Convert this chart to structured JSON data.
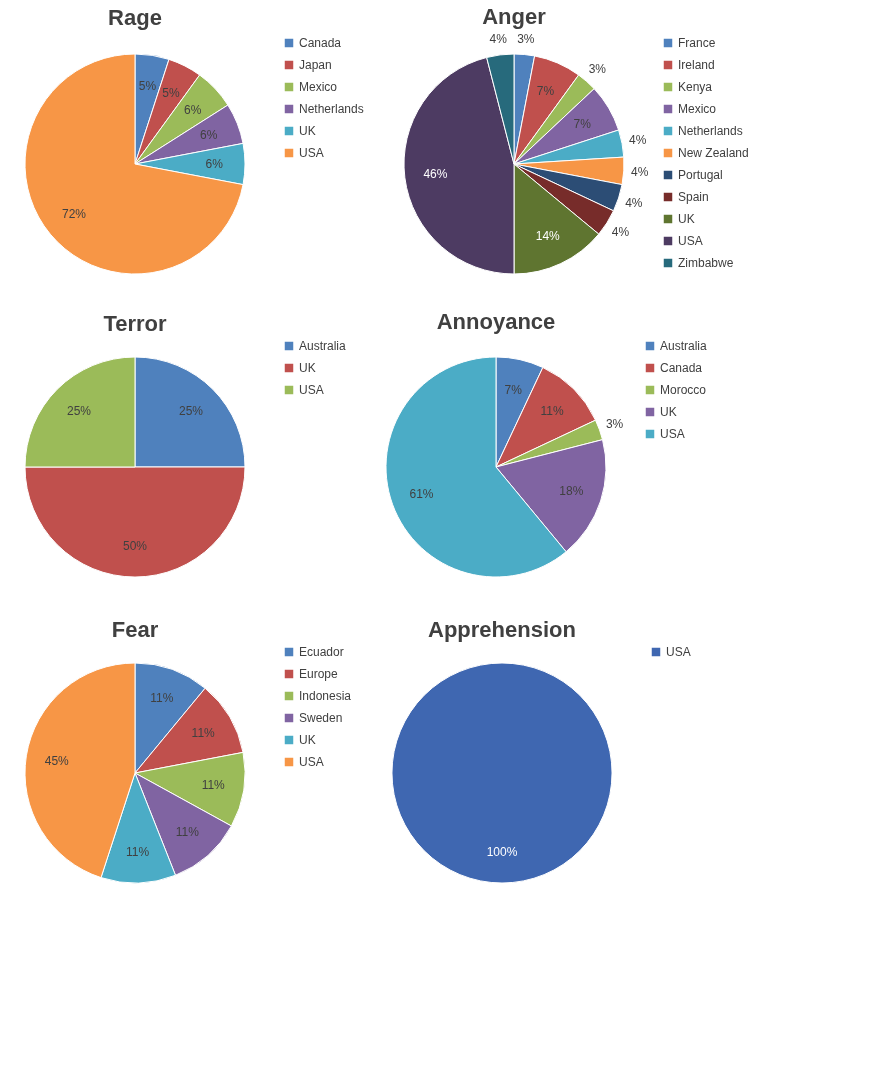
{
  "chart_data": [
    {
      "type": "pie",
      "title": "Rage",
      "categories": [
        "Canada",
        "Japan",
        "Mexico",
        "Netherlands",
        "UK",
        "USA"
      ],
      "values": [
        5,
        5,
        6,
        6,
        6,
        72
      ],
      "value_labels": [
        "5%",
        "5%",
        "6%",
        "6%",
        "6%",
        "72%"
      ],
      "colors": [
        "#4f81bd",
        "#c0504d",
        "#9bbb59",
        "#8064a2",
        "#4bacc6",
        "#f79646"
      ],
      "legend": "right"
    },
    {
      "type": "pie",
      "title": "Anger",
      "categories": [
        "France",
        "Ireland",
        "Kenya",
        "Mexico",
        "Netherlands",
        "New Zealand",
        "Portugal",
        "Spain",
        "UK",
        "USA",
        "Zimbabwe"
      ],
      "values": [
        3,
        7,
        3,
        7,
        4,
        4,
        4,
        4,
        14,
        46,
        4
      ],
      "value_labels": [
        "3%",
        "7%",
        "3%",
        "7%",
        "4%",
        "4%",
        "4%",
        "4%",
        "14%",
        "46%",
        "4%"
      ],
      "colors": [
        "#4f81bd",
        "#c0504d",
        "#9bbb59",
        "#8064a2",
        "#4bacc6",
        "#f79646",
        "#2c4d75",
        "#772c2a",
        "#5f7530",
        "#4d3b62",
        "#276a7c"
      ],
      "legend": "right"
    },
    {
      "type": "pie",
      "title": "Terror",
      "categories": [
        "Australia",
        "UK",
        "USA"
      ],
      "values": [
        25,
        50,
        25
      ],
      "value_labels": [
        "25%",
        "50%",
        "25%"
      ],
      "colors": [
        "#4f81bd",
        "#c0504d",
        "#9bbb59"
      ],
      "legend": "right"
    },
    {
      "type": "pie",
      "title": "Annoyance",
      "categories": [
        "Australia",
        "Canada",
        "Morocco",
        "UK",
        "USA"
      ],
      "values": [
        7,
        11,
        3,
        18,
        61
      ],
      "value_labels": [
        "7%",
        "11%",
        "3%",
        "18%",
        "61%"
      ],
      "colors": [
        "#4f81bd",
        "#c0504d",
        "#9bbb59",
        "#8064a2",
        "#4bacc6"
      ],
      "legend": "right"
    },
    {
      "type": "pie",
      "title": "Fear",
      "categories": [
        "Ecuador",
        "Europe",
        "Indonesia",
        "Sweden",
        "UK",
        "USA"
      ],
      "values": [
        11,
        11,
        11,
        11,
        11,
        45
      ],
      "value_labels": [
        "11%",
        "11%",
        "11%",
        "11%",
        "11%",
        "45%"
      ],
      "colors": [
        "#4f81bd",
        "#c0504d",
        "#9bbb59",
        "#8064a2",
        "#4bacc6",
        "#f79646"
      ],
      "legend": "right"
    },
    {
      "type": "pie",
      "title": "Apprehension",
      "categories": [
        "USA"
      ],
      "values": [
        100
      ],
      "value_labels": [
        "100%"
      ],
      "colors": [
        "#3f67b1"
      ],
      "legend": "right"
    }
  ]
}
